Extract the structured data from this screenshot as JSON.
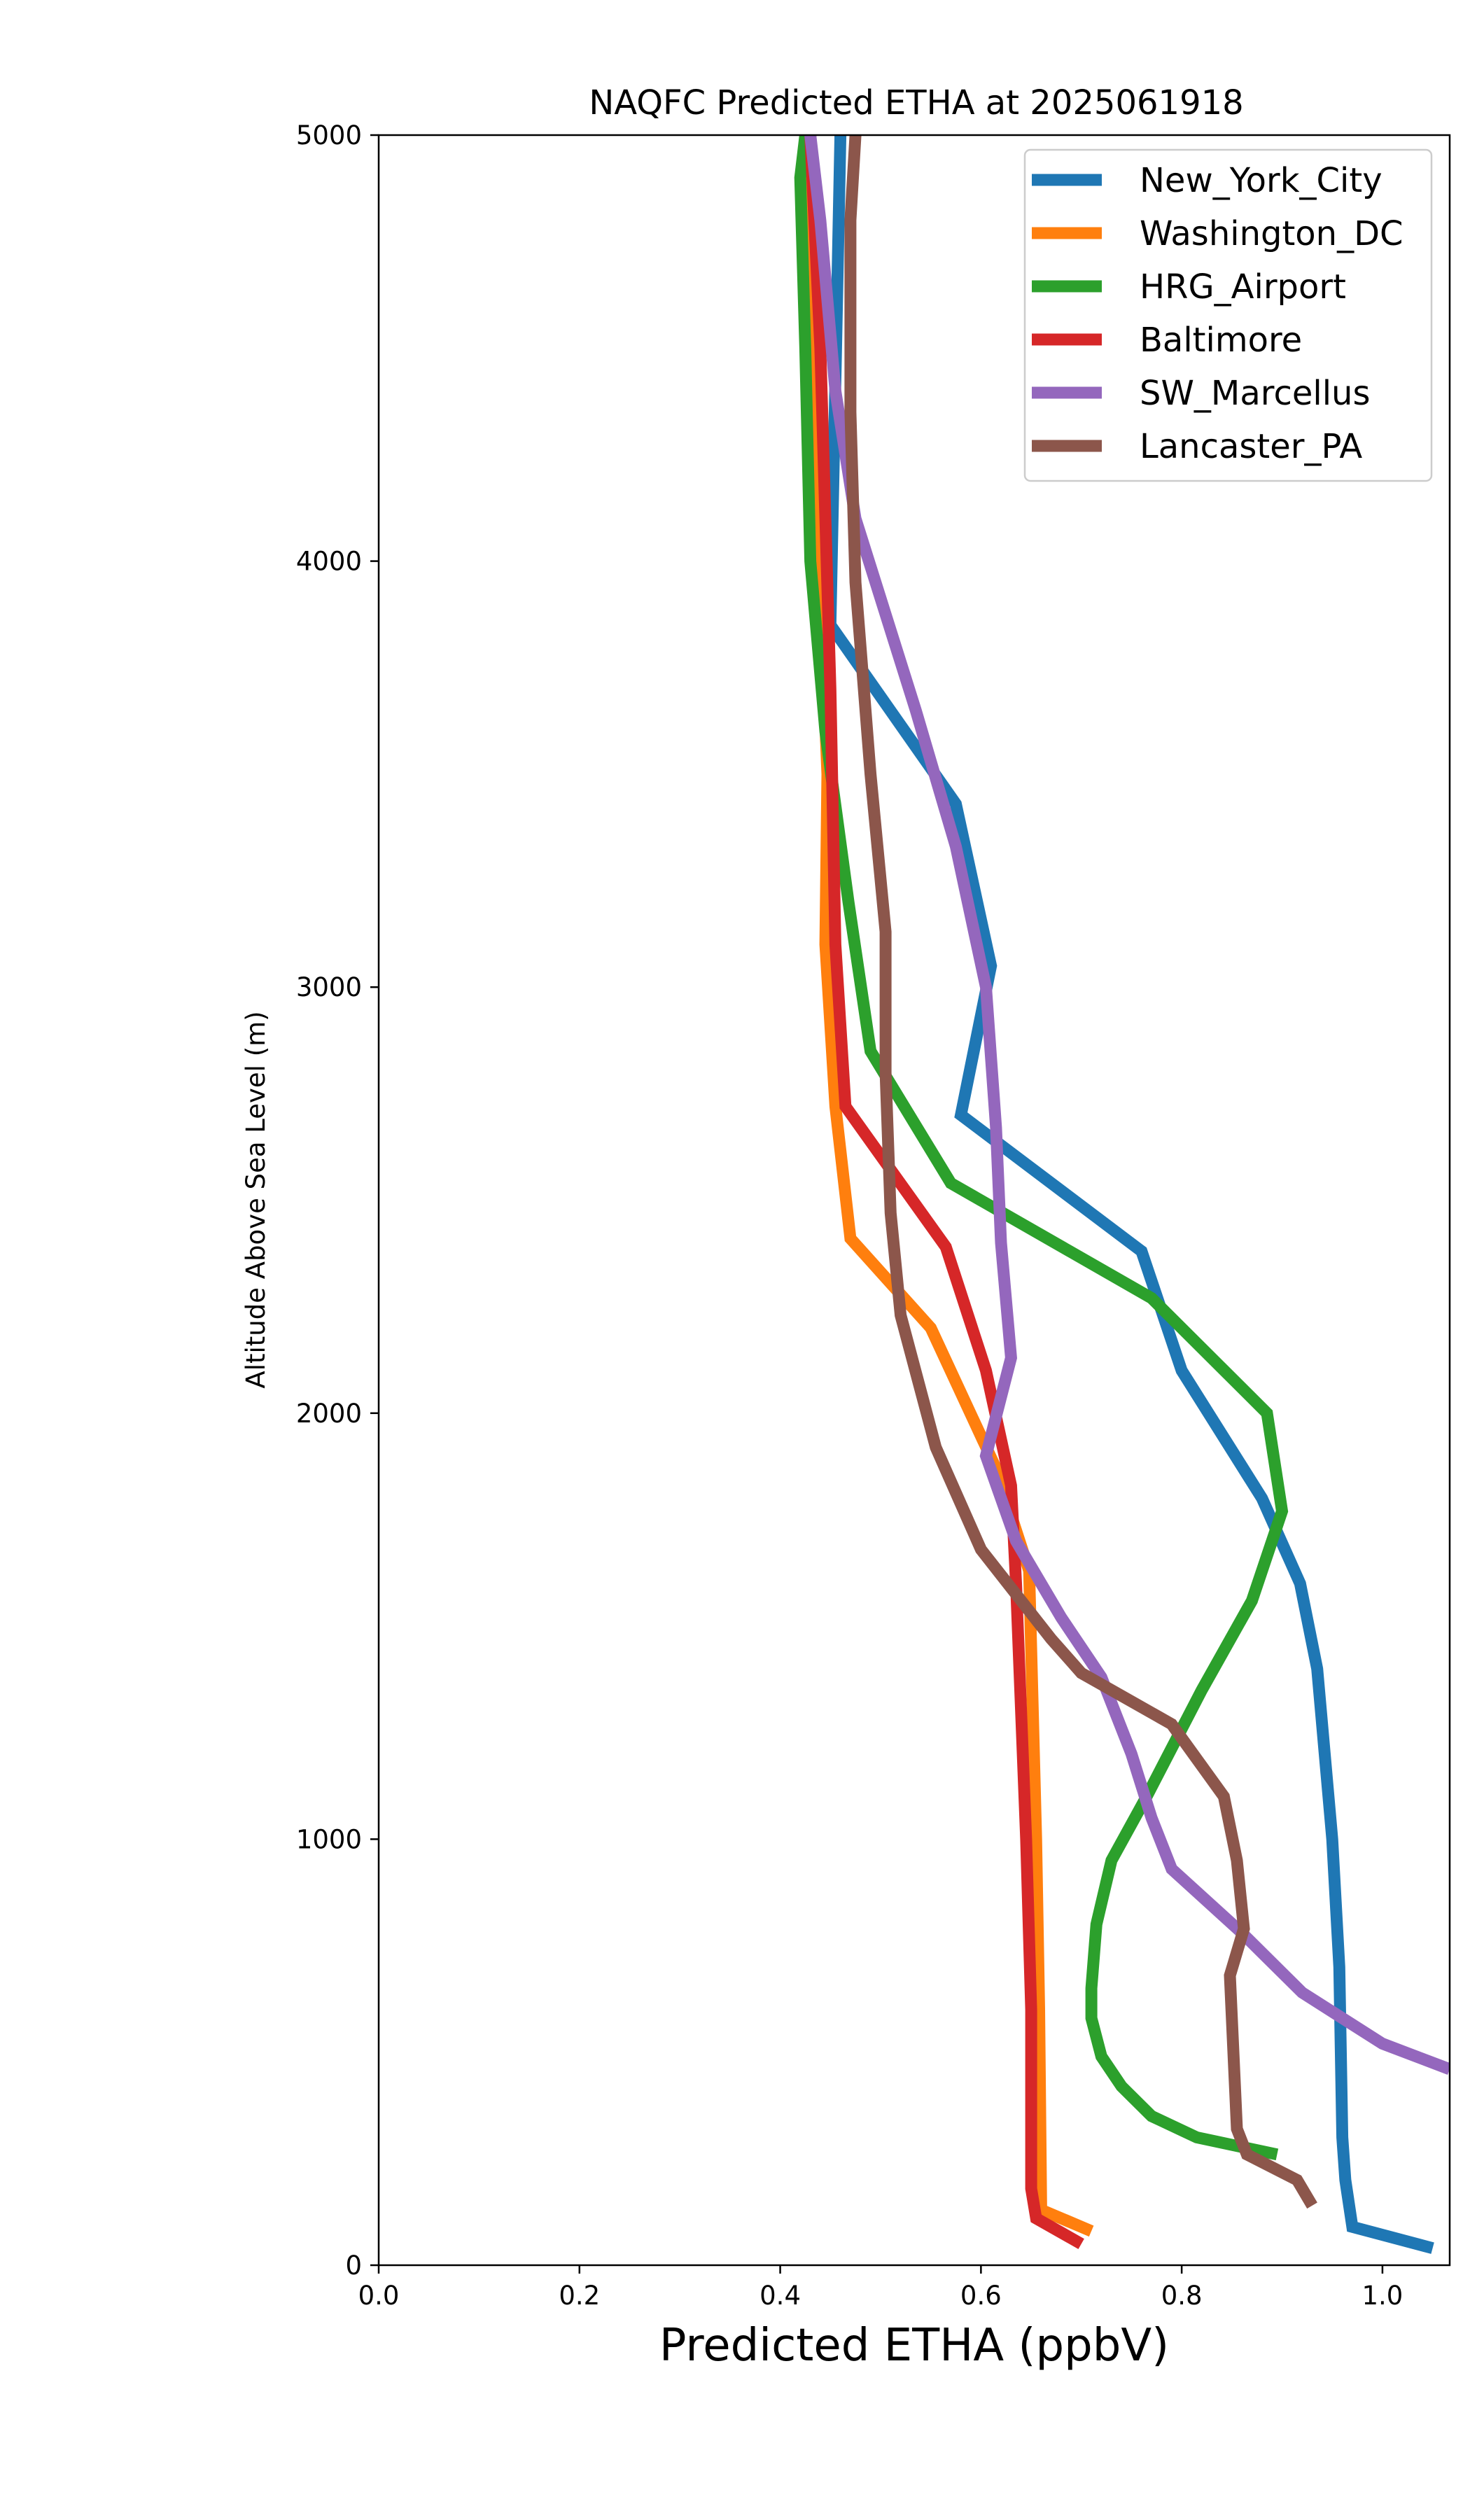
{
  "chart_data": {
    "type": "line",
    "title": "NAQFC Predicted ETHA at 2025061918",
    "xlabel": "Predicted ETHA (ppbV)",
    "ylabel": "Altitude Above Sea Level (m)",
    "xlim": [
      0.0,
      1.067
    ],
    "ylim": [
      0,
      5000
    ],
    "xticks": [
      0.0,
      0.2,
      0.4,
      0.6,
      0.8,
      1.0
    ],
    "xtick_labels": [
      "0.0",
      "0.2",
      "0.4",
      "0.6",
      "0.8",
      "1.0"
    ],
    "yticks": [
      0,
      1000,
      2000,
      3000,
      4000,
      5000
    ],
    "ytick_labels": [
      "0",
      "1000",
      "2000",
      "3000",
      "4000",
      "5000"
    ],
    "grid": false,
    "legend_position": "top-right",
    "series": [
      {
        "name": "New_York_City",
        "color": "#1f77b4",
        "points": [
          [
            1.05,
            40
          ],
          [
            0.97,
            90
          ],
          [
            0.963,
            200
          ],
          [
            0.96,
            300
          ],
          [
            0.957,
            700
          ],
          [
            0.95,
            1000
          ],
          [
            0.935,
            1400
          ],
          [
            0.918,
            1600
          ],
          [
            0.88,
            1800
          ],
          [
            0.8,
            2100
          ],
          [
            0.76,
            2380
          ],
          [
            0.58,
            2700
          ],
          [
            0.61,
            3050
          ],
          [
            0.575,
            3430
          ],
          [
            0.45,
            3850
          ],
          [
            0.46,
            5000
          ]
        ]
      },
      {
        "name": "Washington_DC",
        "color": "#ff7f0e",
        "points": [
          [
            0.71,
            80
          ],
          [
            0.66,
            130
          ],
          [
            0.658,
            600
          ],
          [
            0.655,
            1000
          ],
          [
            0.648,
            1630
          ],
          [
            0.615,
            1870
          ],
          [
            0.55,
            2200
          ],
          [
            0.47,
            2410
          ],
          [
            0.455,
            2720
          ],
          [
            0.445,
            3100
          ],
          [
            0.447,
            3500
          ],
          [
            0.44,
            3900
          ],
          [
            0.435,
            4300
          ],
          [
            0.43,
            5000
          ]
        ]
      },
      {
        "name": "HRG_Airport",
        "color": "#2ca02c",
        "points": [
          [
            0.895,
            260
          ],
          [
            0.815,
            300
          ],
          [
            0.77,
            350
          ],
          [
            0.74,
            420
          ],
          [
            0.72,
            490
          ],
          [
            0.71,
            580
          ],
          [
            0.71,
            650
          ],
          [
            0.715,
            800
          ],
          [
            0.73,
            950
          ],
          [
            0.765,
            1100
          ],
          [
            0.82,
            1350
          ],
          [
            0.87,
            1560
          ],
          [
            0.9,
            1770
          ],
          [
            0.885,
            2000
          ],
          [
            0.77,
            2270
          ],
          [
            0.57,
            2540
          ],
          [
            0.49,
            2850
          ],
          [
            0.468,
            3200
          ],
          [
            0.445,
            3600
          ],
          [
            0.43,
            4000
          ],
          [
            0.425,
            4500
          ],
          [
            0.42,
            4900
          ],
          [
            0.425,
            5000
          ]
        ]
      },
      {
        "name": "Baltimore",
        "color": "#d62728",
        "points": [
          [
            0.7,
            50
          ],
          [
            0.655,
            110
          ],
          [
            0.65,
            180
          ],
          [
            0.65,
            600
          ],
          [
            0.645,
            1000
          ],
          [
            0.635,
            1600
          ],
          [
            0.63,
            1830
          ],
          [
            0.605,
            2100
          ],
          [
            0.565,
            2390
          ],
          [
            0.465,
            2720
          ],
          [
            0.455,
            3100
          ],
          [
            0.45,
            3700
          ],
          [
            0.445,
            4100
          ],
          [
            0.44,
            4500
          ],
          [
            0.43,
            5000
          ]
        ]
      },
      {
        "name": "SW_Marcellus",
        "color": "#9467bd",
        "points": [
          [
            1.067,
            460
          ],
          [
            1.0,
            520
          ],
          [
            0.92,
            640
          ],
          [
            0.86,
            780
          ],
          [
            0.79,
            930
          ],
          [
            0.77,
            1050
          ],
          [
            0.75,
            1200
          ],
          [
            0.72,
            1380
          ],
          [
            0.68,
            1520
          ],
          [
            0.635,
            1700
          ],
          [
            0.605,
            1900
          ],
          [
            0.63,
            2130
          ],
          [
            0.62,
            2400
          ],
          [
            0.615,
            2670
          ],
          [
            0.605,
            3000
          ],
          [
            0.575,
            3330
          ],
          [
            0.535,
            3650
          ],
          [
            0.475,
            4100
          ],
          [
            0.455,
            4400
          ],
          [
            0.44,
            4800
          ],
          [
            0.43,
            5000
          ]
        ]
      },
      {
        "name": "Lancaster_PA",
        "color": "#8c564b",
        "points": [
          [
            0.93,
            140
          ],
          [
            0.915,
            200
          ],
          [
            0.865,
            260
          ],
          [
            0.855,
            320
          ],
          [
            0.848,
            680
          ],
          [
            0.862,
            790
          ],
          [
            0.855,
            950
          ],
          [
            0.842,
            1100
          ],
          [
            0.79,
            1270
          ],
          [
            0.7,
            1390
          ],
          [
            0.67,
            1470
          ],
          [
            0.6,
            1680
          ],
          [
            0.555,
            1920
          ],
          [
            0.52,
            2230
          ],
          [
            0.51,
            2470
          ],
          [
            0.505,
            2800
          ],
          [
            0.505,
            3130
          ],
          [
            0.49,
            3500
          ],
          [
            0.475,
            3950
          ],
          [
            0.47,
            4350
          ],
          [
            0.47,
            4800
          ],
          [
            0.475,
            5000
          ]
        ]
      }
    ]
  }
}
